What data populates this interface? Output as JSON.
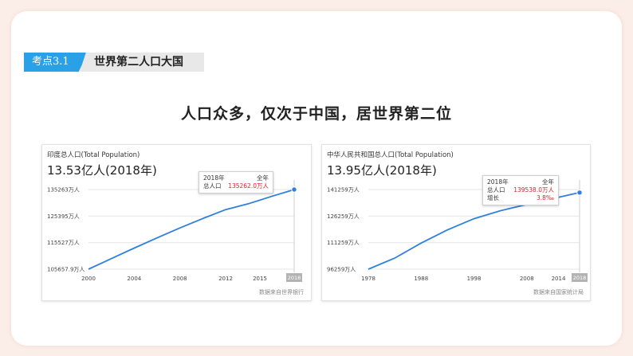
{
  "header": {
    "tag": "考点3.1",
    "title": "世界第二人口大国"
  },
  "subtitle": "人口众多，仅次于中国，居世界第二位",
  "colors": {
    "accent": "#2aa0e6",
    "line": "#2f80dd",
    "highlight": "#d9262b",
    "frame": "#fbeee9"
  },
  "left_card": {
    "heading": "印度总人口(Total Population)",
    "big": "13.53亿人(2018年)",
    "source": "数据来自世界银行",
    "tooltip": {
      "year": "2018年",
      "scope": "全年",
      "label": "总人口",
      "value": "135262.0万人"
    },
    "end_label": "2018"
  },
  "right_card": {
    "heading": "中华人民共和国总人口(Total Population)",
    "big": "13.95亿人(2018年)",
    "source": "数据来自国家统计局",
    "tooltip": {
      "year": "2018年",
      "scope": "全年",
      "label": "总人口",
      "value": "139538.0万人",
      "label2": "增长",
      "value2": "3.8‰"
    },
    "end_label": "2018"
  },
  "chart_data": [
    {
      "type": "line",
      "title": "印度总人口(Total Population)",
      "ytick_labels": [
        "135263万人",
        "125395万人",
        "115527万人",
        "105657.9万人"
      ],
      "yticks": [
        135263,
        125395,
        115527,
        105657.9
      ],
      "ylim": [
        105657.9,
        135263
      ],
      "xtick_labels": [
        "2000",
        "2004",
        "2008",
        "2012",
        "2015"
      ],
      "xticks": [
        2000,
        2004,
        2008,
        2012,
        2015
      ],
      "xlim": [
        2000,
        2018
      ],
      "grid": true,
      "series": [
        {
          "x": [
            2000,
            2002,
            2004,
            2006,
            2008,
            2010,
            2012,
            2014,
            2016,
            2018
          ],
          "y": [
            105657.9,
            109600,
            113500,
            117300,
            121000,
            124500,
            127800,
            130000,
            132700,
            135262.0
          ]
        }
      ]
    },
    {
      "type": "line",
      "title": "中华人民共和国总人口(Total Population)",
      "ytick_labels": [
        "141259万人",
        "126259万人",
        "111259万人",
        "96259万人"
      ],
      "yticks": [
        141259,
        126259,
        111259,
        96259
      ],
      "ylim": [
        96259,
        141259
      ],
      "xtick_labels": [
        "1978",
        "1988",
        "1998",
        "2008",
        "2014"
      ],
      "xticks": [
        1978,
        1988,
        1998,
        2008,
        2014
      ],
      "xlim": [
        1978,
        2018
      ],
      "grid": true,
      "series": [
        {
          "x": [
            1978,
            1983,
            1988,
            1993,
            1998,
            2003,
            2008,
            2013,
            2018
          ],
          "y": [
            96259,
            102500,
            111000,
            118500,
            124800,
            129300,
            132800,
            136200,
            139538.0
          ]
        }
      ]
    }
  ]
}
